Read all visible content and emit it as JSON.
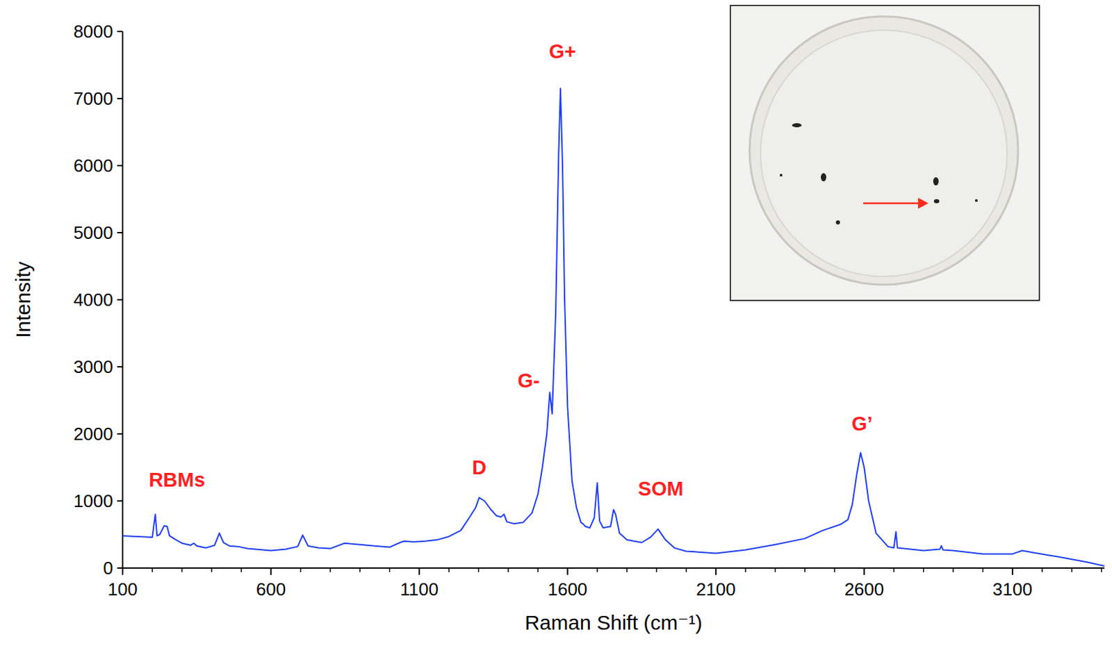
{
  "chart_data": {
    "type": "line",
    "x_label": "Raman Shift (cm⁻¹)",
    "y_label": "Intensity",
    "color": "#1f3ff5",
    "grid": false,
    "xlim": [
      100,
      3410
    ],
    "xticks": [
      100,
      600,
      1100,
      1600,
      2100,
      2600,
      3100
    ],
    "ylim": [
      0,
      8000
    ],
    "yticks": [
      0,
      1000,
      2000,
      3000,
      4000,
      5000,
      6000,
      7000,
      8000
    ],
    "x": [
      100,
      150,
      200,
      210,
      216,
      225,
      240,
      250,
      258,
      280,
      300,
      330,
      340,
      350,
      380,
      410,
      426,
      440,
      460,
      490,
      520,
      600,
      650,
      690,
      707,
      725,
      760,
      800,
      848,
      900,
      950,
      1000,
      1030,
      1048,
      1080,
      1120,
      1160,
      1200,
      1240,
      1270,
      1290,
      1302,
      1320,
      1340,
      1360,
      1375,
      1386,
      1395,
      1420,
      1450,
      1480,
      1500,
      1515,
      1530,
      1540,
      1548,
      1560,
      1570,
      1576,
      1583,
      1590,
      1600,
      1615,
      1630,
      1645,
      1652,
      1660,
      1675,
      1690,
      1700,
      1708,
      1720,
      1745,
      1755,
      1762,
      1775,
      1800,
      1850,
      1880,
      1905,
      1930,
      1960,
      2000,
      2100,
      2200,
      2300,
      2400,
      2460,
      2520,
      2545,
      2560,
      2575,
      2588,
      2600,
      2615,
      2640,
      2680,
      2700,
      2707,
      2712,
      2800,
      2855,
      2860,
      2866,
      2900,
      3000,
      3100,
      3133,
      3170,
      3250,
      3300,
      3350,
      3410
    ],
    "values": [
      480,
      470,
      460,
      800,
      480,
      500,
      630,
      620,
      480,
      420,
      370,
      340,
      370,
      330,
      300,
      340,
      520,
      380,
      330,
      320,
      290,
      260,
      280,
      320,
      490,
      330,
      300,
      290,
      370,
      350,
      330,
      310,
      370,
      400,
      390,
      400,
      420,
      470,
      560,
      760,
      900,
      1050,
      1000,
      880,
      780,
      760,
      800,
      690,
      660,
      680,
      820,
      1100,
      1500,
      2000,
      2620,
      2300,
      3800,
      6200,
      7150,
      6000,
      4000,
      2400,
      1300,
      900,
      680,
      660,
      620,
      600,
      750,
      1270,
      700,
      600,
      620,
      870,
      800,
      520,
      420,
      380,
      460,
      580,
      420,
      300,
      250,
      220,
      270,
      350,
      440,
      560,
      650,
      720,
      950,
      1400,
      1720,
      1500,
      1000,
      520,
      320,
      300,
      540,
      300,
      260,
      280,
      330,
      270,
      260,
      210,
      210,
      260,
      230,
      170,
      130,
      90,
      30
    ],
    "annotations": [
      {
        "text": "RBMs",
        "x": 283,
        "y": 1320
      },
      {
        "text": "D",
        "x": 1302,
        "y": 1500
      },
      {
        "text": "G-",
        "x": 1469,
        "y": 2800
      },
      {
        "text": "G+",
        "x": 1583,
        "y": 7700
      },
      {
        "text": "SOM",
        "x": 1914,
        "y": 1180
      },
      {
        "text": "G’",
        "x": 2593,
        "y": 2150
      }
    ]
  }
}
